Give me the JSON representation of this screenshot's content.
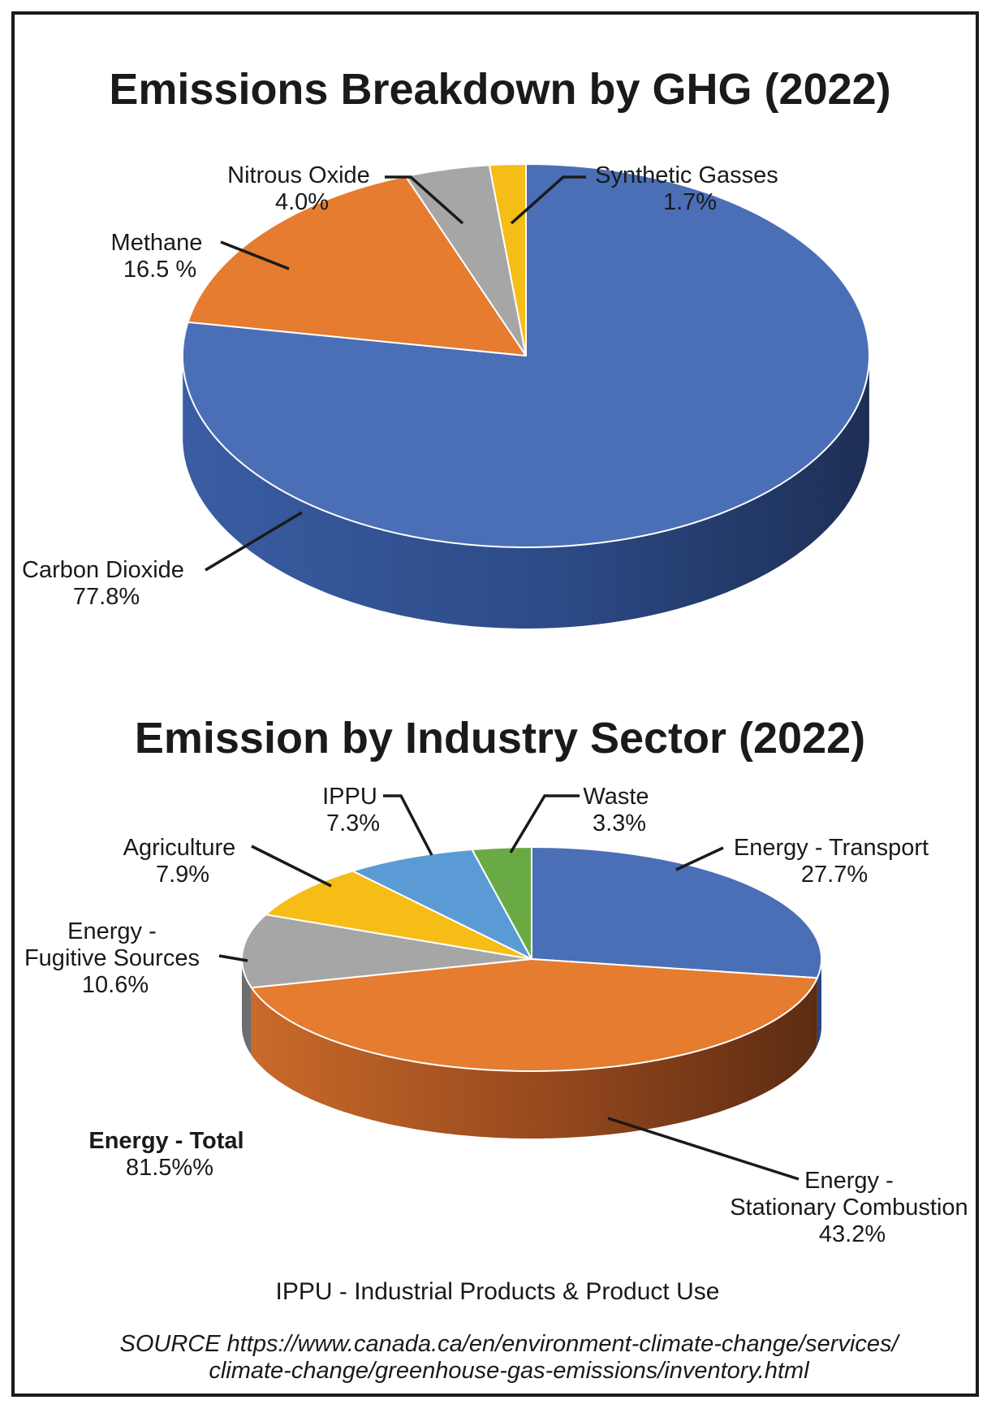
{
  "chart_data": [
    {
      "type": "pie",
      "title": "Emissions Breakdown by GHG (2022)",
      "slices": [
        {
          "name": "Carbon Dioxide",
          "label": "Carbon Dioxide",
          "value_label": "77.8%",
          "value": 77.8,
          "color": "#4a6fb6",
          "side_color": "#2b4680"
        },
        {
          "name": "Methane",
          "label": "Methane",
          "value_label": "16.5 %",
          "value": 16.5,
          "color": "#e57c30",
          "side_color": "#9c4a1a"
        },
        {
          "name": "Nitrous Oxide",
          "label": "Nitrous Oxide",
          "value_label": "4.0%",
          "value": 4.0,
          "color": "#a6a6a6",
          "side_color": "#6d6d6d"
        },
        {
          "name": "Synthetic Gasses",
          "label": "Synthetic Gasses",
          "value_label": "1.7%",
          "value": 1.7,
          "color": "#f5bd16",
          "side_color": "#a67f0e"
        }
      ]
    },
    {
      "type": "pie",
      "title": "Emission by Industry Sector (2022)",
      "slices": [
        {
          "name": "Energy - Transport",
          "label": "Energy - Transport",
          "value_label": "27.7%",
          "value": 27.7,
          "color": "#4a6fb6",
          "side_color": "#2b4680"
        },
        {
          "name": "Energy - Stationary Combustion",
          "label": "Energy -\nStationary Combustion",
          "value_label": "43.2%",
          "value": 43.2,
          "color": "#e57c30",
          "side_color": "#9c4a1a"
        },
        {
          "name": "Energy - Fugitive Sources",
          "label": "Energy -\nFugitive Sources",
          "value_label": "10.6%",
          "value": 10.6,
          "color": "#a6a6a6",
          "side_color": "#6d6d6d"
        },
        {
          "name": "Agriculture",
          "label": "Agriculture",
          "value_label": "7.9%",
          "value": 7.9,
          "color": "#f5bd16",
          "side_color": "#a67f0e"
        },
        {
          "name": "IPPU",
          "label": "IPPU",
          "value_label": "7.3%",
          "value": 7.3,
          "color": "#5b9bd5",
          "side_color": "#3a6b99"
        },
        {
          "name": "Waste",
          "label": "Waste",
          "value_label": "3.3%",
          "value": 3.3,
          "color": "#6aaa45",
          "side_color": "#44702c"
        }
      ],
      "annotation": {
        "label": "Energy - Total",
        "value_label": "81.5%%"
      }
    }
  ],
  "footnote": "IPPU - Industrial Products & Product Use",
  "source_line1": "SOURCE https://www.canada.ca/en/environment-climate-change/services/",
  "source_line2": "climate-change/greenhouse-gas-emissions/inventory.html"
}
